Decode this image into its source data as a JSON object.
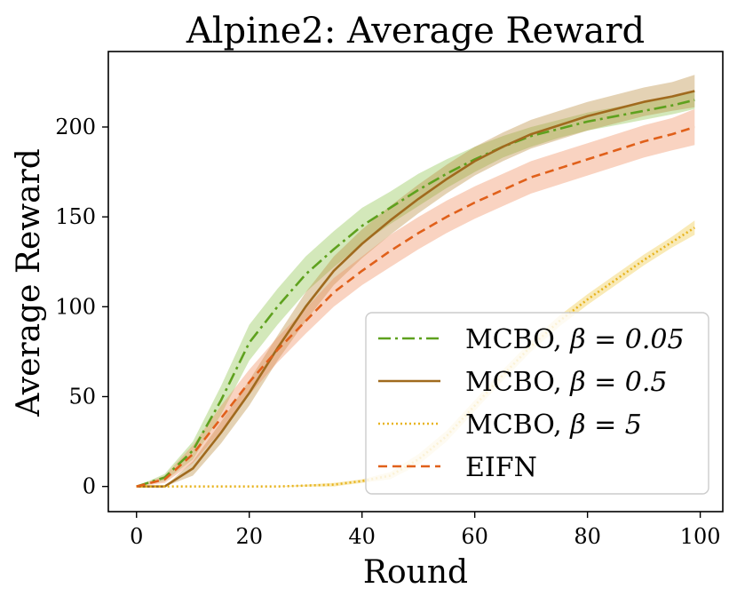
{
  "chart_data": {
    "type": "line",
    "title": "Alpine2: Average Reward",
    "xlabel": "Round",
    "ylabel": "Average Reward",
    "xlim": [
      -5,
      104
    ],
    "ylim": [
      -14,
      242
    ],
    "xticks": [
      0,
      20,
      40,
      60,
      80,
      100
    ],
    "yticks": [
      0,
      50,
      100,
      150,
      200
    ],
    "legend_position": "lower-right",
    "x": [
      0,
      5,
      10,
      15,
      20,
      25,
      30,
      35,
      40,
      45,
      50,
      55,
      60,
      65,
      70,
      75,
      80,
      85,
      90,
      95,
      99
    ],
    "series": [
      {
        "name": "MCBO, β = 0.05",
        "label_text": "MCBO, ",
        "label_symbol": "β = 0.05",
        "color": "#5ea11e",
        "band_color": "#8cc34a",
        "dash": "14,5,3,5",
        "values": [
          0,
          5,
          20,
          48,
          80,
          100,
          118,
          132,
          145,
          155,
          165,
          174,
          182,
          189,
          195,
          199,
          203,
          206,
          209,
          212,
          215
        ],
        "lower": [
          0,
          3,
          15,
          40,
          70,
          90,
          108,
          122,
          135,
          146,
          156,
          166,
          175,
          183,
          189,
          194,
          198,
          201,
          204,
          207,
          210
        ],
        "upper": [
          0,
          7,
          25,
          56,
          90,
          110,
          128,
          142,
          155,
          164,
          174,
          182,
          189,
          195,
          200,
          204,
          208,
          211,
          214,
          217,
          220
        ]
      },
      {
        "name": "MCBO, β = 0.5",
        "label_text": "MCBO, ",
        "label_symbol": "β = 0.5",
        "color": "#a06a1e",
        "band_color": "#b8893a",
        "dash": "",
        "values": [
          0,
          0,
          10,
          30,
          52,
          77,
          100,
          120,
          135,
          148,
          160,
          171,
          181,
          189,
          196,
          201,
          206,
          210,
          214,
          217,
          220
        ],
        "lower": [
          0,
          0,
          6,
          24,
          45,
          70,
          92,
          112,
          127,
          140,
          152,
          163,
          173,
          181,
          188,
          193,
          198,
          202,
          206,
          209,
          211
        ],
        "upper": [
          0,
          0,
          14,
          36,
          59,
          84,
          108,
          128,
          143,
          156,
          168,
          179,
          189,
          197,
          204,
          209,
          214,
          218,
          222,
          225,
          229
        ]
      },
      {
        "name": "MCBO, β = 5",
        "label_text": "MCBO, ",
        "label_symbol": "β = 5",
        "color": "#e8b420",
        "band_color": "#f0c840",
        "dash": "2,3",
        "values": [
          0,
          0,
          0,
          0,
          0,
          0,
          0.5,
          1,
          3,
          6,
          15,
          28,
          45,
          62,
          78,
          92,
          104,
          115,
          126,
          136,
          144
        ],
        "lower": [
          0,
          0,
          0,
          0,
          0,
          0,
          0,
          0,
          2,
          4,
          12,
          25,
          42,
          59,
          75,
          89,
          101,
          112,
          123,
          133,
          140
        ],
        "upper": [
          0,
          0,
          0,
          0,
          0,
          0,
          1,
          2,
          4,
          8,
          18,
          31,
          48,
          65,
          81,
          95,
          107,
          118,
          129,
          139,
          148
        ]
      },
      {
        "name": "EIFN",
        "label_text": "EIFN",
        "label_symbol": "",
        "color": "#e0601a",
        "band_color": "#ee8b5c",
        "dash": "10,6",
        "values": [
          0,
          4,
          18,
          38,
          58,
          76,
          92,
          108,
          120,
          131,
          141,
          150,
          158,
          165,
          172,
          177,
          182,
          187,
          192,
          196,
          200
        ],
        "lower": [
          0,
          2,
          13,
          31,
          51,
          69,
          85,
          100,
          112,
          122,
          132,
          141,
          149,
          156,
          163,
          168,
          173,
          178,
          183,
          187,
          190
        ],
        "upper": [
          0,
          6,
          23,
          45,
          65,
          83,
          99,
          116,
          128,
          140,
          150,
          159,
          167,
          174,
          181,
          186,
          191,
          196,
          201,
          205,
          210
        ]
      }
    ]
  }
}
